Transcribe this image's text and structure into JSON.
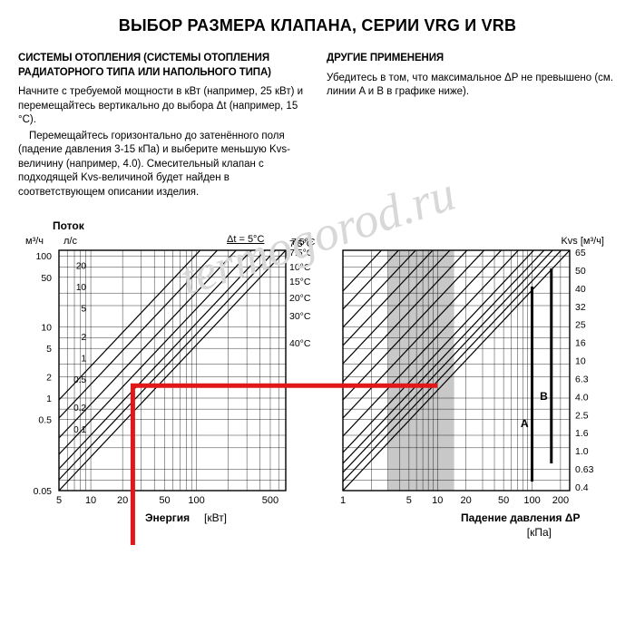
{
  "title": "ВЫБОР РАЗМЕРА КЛАПАНА, СЕРИИ VRG И VRB",
  "left": {
    "heading": "СИСТЕМЫ ОТОПЛЕНИЯ (СИСТЕМЫ ОТОПЛЕНИЯ РАДИАТОРНОГО ТИПА ИЛИ НАПОЛЬНОГО ТИПА)",
    "p1": "Начните с требуемой мощности в кВт (например, 25 кВт) и перемещайтесь вертикально до выбора Δt (например, 15 °С).",
    "p2": "Перемещайтесь горизонтально до затенённого поля (падение давления 3-15 кПа) и выберите меньшую Kvs-величину (например, 4.0). Смесительный клапан с подходящей Kvs-величиной будет найден в соответствующем описании изделия."
  },
  "right": {
    "heading": "ДРУГИЕ ПРИМЕНЕНИЯ",
    "p1": "Убедитесь в том, что максимальное ΔP не превышено (см. линии A и B в графике ниже)."
  },
  "watermark": "termogorod.ru",
  "colors": {
    "grid": "#000000",
    "bg": "#ffffff",
    "band": "#c8c8c8",
    "hl": "#e11818",
    "text": "#000000"
  },
  "chart_left": {
    "type": "nomogram-loglog",
    "header_flow": "Поток",
    "y_unit_left": "м³/ч",
    "y_unit_right": "л/с",
    "x_label": "Энергия",
    "x_unit": "[кВт]",
    "x_ticks": [
      "5",
      "10",
      "20",
      "50",
      "100",
      "500"
    ],
    "x_values": [
      5,
      10,
      20,
      50,
      100,
      500
    ],
    "y_left_ticks": [
      "100",
      "50",
      "10",
      "5",
      "2",
      "1",
      "0.5",
      "0.05"
    ],
    "y_left_values": [
      100,
      50,
      10,
      5,
      2,
      1,
      0.5,
      0.05
    ],
    "y_right_ticks": [
      "20",
      "10",
      "5",
      "2",
      "1",
      "0.5",
      "0.2",
      "0.1"
    ],
    "dt_label": "Δt = 5°С",
    "dt_values": [
      "7.5°С",
      "10°С",
      "15°С",
      "20°С",
      "30°С",
      "40°С"
    ],
    "diag_offsets": [
      0,
      -12,
      -24,
      -40,
      -58,
      -80,
      -100
    ],
    "highlight": {
      "x_kW": 25,
      "y_m3h": 1.5
    }
  },
  "chart_right": {
    "type": "nomogram-loglog",
    "x_label": "Падение давления ΔP",
    "x_unit": "[кПа]",
    "x_ticks": [
      "1",
      "5",
      "10",
      "20",
      "50",
      "100",
      "200"
    ],
    "x_values": [
      1,
      5,
      10,
      20,
      50,
      100,
      200
    ],
    "band_x": [
      3,
      15
    ],
    "kvs_label": "Kvs [м³/ч]",
    "kvs_values": [
      "65",
      "50",
      "40",
      "32",
      "25",
      "16",
      "10",
      "6.3",
      "4.0",
      "2.5",
      "1.6",
      "1.0",
      "0.63",
      "0.4"
    ],
    "kvs_offsets": [
      0,
      -10,
      -20,
      -30,
      -42,
      -60,
      -80,
      -100,
      -120,
      -140,
      -160,
      -180,
      -200,
      -220
    ],
    "markers": [
      "A",
      "B"
    ]
  }
}
